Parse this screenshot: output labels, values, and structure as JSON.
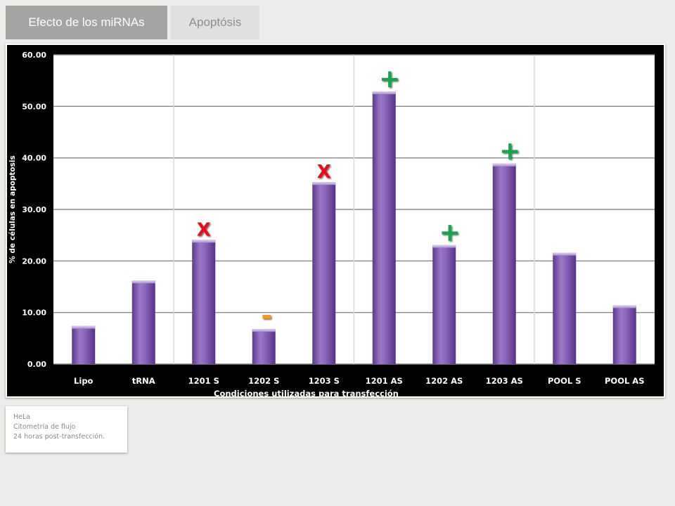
{
  "tabs": [
    {
      "label": "Efecto de los miRNAs",
      "active": true
    },
    {
      "label": "Apoptósis",
      "active": false
    }
  ],
  "chart_data": {
    "type": "bar",
    "title": "",
    "xlabel": "Condiciones utilizadas para transfección",
    "ylabel": "% de células en apoptosis",
    "categories": [
      "Lipo",
      "tRNA",
      "1201 S",
      "1202 S",
      "1203 S",
      "1201 AS",
      "1202 AS",
      "1203 AS",
      "POOL S",
      "POOL AS"
    ],
    "values": [
      7.4,
      16.2,
      24.1,
      6.8,
      35.3,
      52.9,
      23.1,
      38.9,
      21.6,
      11.4
    ],
    "ylim": [
      0,
      60
    ],
    "yticks": [
      "0.00",
      "10.00",
      "20.00",
      "30.00",
      "40.00",
      "50.00",
      "60.00"
    ],
    "group_separators_after": [
      "tRNA",
      "1203 S",
      "1203 AS"
    ],
    "grid": true,
    "colors": {
      "bar": "#7c55ad",
      "bar_light": "#a98ad4",
      "bar_dark": "#4f2f7a",
      "plot_bg": "#ffffff",
      "frame": "#000000",
      "positive_mark": "#13a54c",
      "negative_mark": "#e8101a",
      "neutral_mark": "#f39a1e"
    },
    "annotations": [
      {
        "category": "1201 S",
        "symbol": "X",
        "kind": "negative"
      },
      {
        "category": "1202 S",
        "symbol": "-",
        "kind": "neutral"
      },
      {
        "category": "1203 S",
        "symbol": "X",
        "kind": "negative"
      },
      {
        "category": "1201 AS",
        "symbol": "+",
        "kind": "positive"
      },
      {
        "category": "1202 AS",
        "symbol": "+",
        "kind": "positive"
      },
      {
        "category": "1203 AS",
        "symbol": "+",
        "kind": "positive"
      }
    ]
  },
  "note": {
    "lines": [
      "HeLa",
      "Citometría de flujo",
      "24 horas post-transfección."
    ]
  }
}
